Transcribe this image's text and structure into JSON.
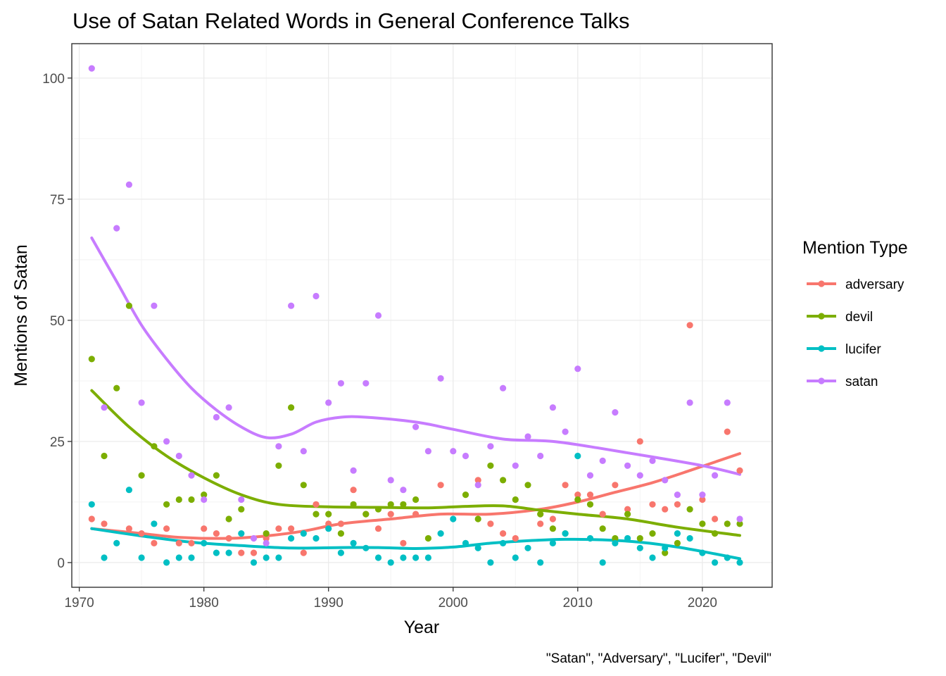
{
  "chart_data": {
    "type": "scatter",
    "title": "Use of Satan Related Words in General Conference Talks",
    "xlabel": "Year",
    "ylabel": "Mentions of Satan",
    "caption": "\"Satan\", \"Adversary\", \"Lucifer\", \"Devil\"",
    "xlim": [
      1969.4,
      1975.5
    ],
    "x_range": [
      1969.4,
      2025.6
    ],
    "ylim": [
      -5.1,
      107.1
    ],
    "x_ticks": [
      1970,
      1980,
      1990,
      2000,
      2010,
      2020
    ],
    "x_tick_labels": [
      "1970",
      "1980",
      "1990",
      "2000",
      "2010",
      "2020"
    ],
    "y_ticks": [
      0,
      25,
      50,
      75,
      100
    ],
    "y_tick_labels": [
      "0",
      "25",
      "50",
      "75",
      "100"
    ],
    "grid": true,
    "theme": "bw",
    "legend": {
      "title": "Mention Type",
      "position": "right"
    },
    "smooth": "loess",
    "series": [
      {
        "name": "adversary",
        "color": "#F8766D",
        "x": [
          1971,
          1972,
          1973,
          1974,
          1975,
          1976,
          1977,
          1978,
          1979,
          1980,
          1981,
          1982,
          1983,
          1984,
          1985,
          1986,
          1987,
          1988,
          1989,
          1990,
          1991,
          1992,
          1993,
          1994,
          1995,
          1996,
          1997,
          1998,
          1999,
          2000,
          2001,
          2002,
          2003,
          2004,
          2005,
          2006,
          2007,
          2008,
          2009,
          2010,
          2011,
          2012,
          2013,
          2014,
          2015,
          2016,
          2017,
          2018,
          2019,
          2020,
          2021,
          2022,
          2023
        ],
        "values": [
          9,
          8,
          null,
          7,
          6,
          4,
          7,
          4,
          4,
          7,
          6,
          5,
          2,
          2,
          5,
          7,
          7,
          2,
          12,
          8,
          8,
          15,
          10,
          7,
          10,
          4,
          10,
          null,
          16,
          null,
          null,
          17,
          8,
          6,
          5,
          null,
          8,
          9,
          16,
          14,
          14,
          10,
          16,
          11,
          25,
          12,
          11,
          12,
          49,
          13,
          9,
          27,
          19
        ],
        "trend": [
          [
            1971,
            7.0
          ],
          [
            1975,
            6.0
          ],
          [
            1978,
            5.2
          ],
          [
            1982,
            5.0
          ],
          [
            1985,
            5.5
          ],
          [
            1988,
            6.5
          ],
          [
            1991,
            8.0
          ],
          [
            1995,
            9.0
          ],
          [
            1999,
            10.0
          ],
          [
            2003,
            10.0
          ],
          [
            2007,
            11.0
          ],
          [
            2010,
            12.5
          ],
          [
            2013,
            14.5
          ],
          [
            2016,
            16.5
          ],
          [
            2019,
            19.0
          ],
          [
            2023,
            22.5
          ]
        ]
      },
      {
        "name": "devil",
        "color": "#7CAE00",
        "x": [
          1971,
          1972,
          1973,
          1974,
          1975,
          1976,
          1977,
          1978,
          1979,
          1980,
          1981,
          1982,
          1983,
          1984,
          1985,
          1986,
          1987,
          1988,
          1989,
          1990,
          1991,
          1992,
          1993,
          1994,
          1995,
          1996,
          1997,
          1998,
          1999,
          2000,
          2001,
          2002,
          2003,
          2004,
          2005,
          2006,
          2007,
          2008,
          2009,
          2010,
          2011,
          2012,
          2013,
          2014,
          2015,
          2016,
          2017,
          2018,
          2019,
          2020,
          2021,
          2022,
          2023
        ],
        "values": [
          42,
          22,
          36,
          53,
          18,
          24,
          12,
          13,
          13,
          14,
          18,
          9,
          11,
          null,
          6,
          20,
          32,
          16,
          10,
          10,
          6,
          12,
          10,
          11,
          12,
          12,
          13,
          5,
          null,
          null,
          14,
          9,
          20,
          17,
          13,
          16,
          10,
          7,
          6,
          13,
          12,
          7,
          5,
          10,
          5,
          6,
          2,
          4,
          11,
          8,
          6,
          8,
          8
        ],
        "trend": [
          [
            1971,
            35.5
          ],
          [
            1974,
            28.0
          ],
          [
            1977,
            22.0
          ],
          [
            1980,
            17.5
          ],
          [
            1983,
            14.0
          ],
          [
            1986,
            12.0
          ],
          [
            1990,
            11.5
          ],
          [
            1994,
            11.4
          ],
          [
            1998,
            11.3
          ],
          [
            2001,
            11.6
          ],
          [
            2004,
            11.7
          ],
          [
            2007,
            10.8
          ],
          [
            2010,
            10.0
          ],
          [
            2014,
            9.0
          ],
          [
            2018,
            7.3
          ],
          [
            2023,
            5.6
          ]
        ]
      },
      {
        "name": "lucifer",
        "color": "#00BFC4",
        "x": [
          1971,
          1972,
          1973,
          1974,
          1975,
          1976,
          1977,
          1978,
          1979,
          1980,
          1981,
          1982,
          1983,
          1984,
          1985,
          1986,
          1987,
          1988,
          1989,
          1990,
          1991,
          1992,
          1993,
          1994,
          1995,
          1996,
          1997,
          1998,
          1999,
          2000,
          2001,
          2002,
          2003,
          2004,
          2005,
          2006,
          2007,
          2008,
          2009,
          2010,
          2011,
          2012,
          2013,
          2014,
          2015,
          2016,
          2017,
          2018,
          2019,
          2020,
          2021,
          2022,
          2023
        ],
        "values": [
          12,
          1,
          4,
          15,
          1,
          8,
          0,
          1,
          1,
          4,
          2,
          2,
          6,
          0,
          1,
          1,
          5,
          6,
          5,
          7,
          2,
          4,
          3,
          1,
          0,
          1,
          1,
          1,
          6,
          9,
          4,
          3,
          0,
          4,
          1,
          3,
          0,
          4,
          6,
          22,
          5,
          0,
          4,
          5,
          3,
          1,
          3,
          6,
          5,
          2,
          0,
          1,
          0
        ],
        "trend": [
          [
            1971,
            7.0
          ],
          [
            1975,
            5.5
          ],
          [
            1979,
            4.2
          ],
          [
            1983,
            3.5
          ],
          [
            1987,
            3.0
          ],
          [
            1991,
            3.1
          ],
          [
            1994,
            3.1
          ],
          [
            1997,
            2.9
          ],
          [
            2000,
            3.2
          ],
          [
            2003,
            4.0
          ],
          [
            2006,
            4.5
          ],
          [
            2009,
            4.8
          ],
          [
            2012,
            4.7
          ],
          [
            2015,
            4.2
          ],
          [
            2018,
            3.2
          ],
          [
            2021,
            1.8
          ],
          [
            2023,
            0.8
          ]
        ]
      },
      {
        "name": "satan",
        "color": "#C77CFF",
        "x": [
          1971,
          1972,
          1973,
          1974,
          1975,
          1976,
          1977,
          1978,
          1979,
          1980,
          1981,
          1982,
          1983,
          1984,
          1985,
          1986,
          1987,
          1988,
          1989,
          1990,
          1991,
          1992,
          1993,
          1994,
          1995,
          1996,
          1997,
          1998,
          1999,
          2000,
          2001,
          2002,
          2003,
          2004,
          2005,
          2006,
          2007,
          2008,
          2009,
          2010,
          2011,
          2012,
          2013,
          2014,
          2015,
          2016,
          2017,
          2018,
          2019,
          2020,
          2021,
          2022,
          2023
        ],
        "values": [
          102,
          32,
          69,
          78,
          33,
          53,
          25,
          22,
          18,
          13,
          30,
          32,
          13,
          5,
          4,
          24,
          53,
          23,
          55,
          33,
          37,
          19,
          37,
          51,
          17,
          15,
          28,
          23,
          38,
          23,
          22,
          16,
          24,
          36,
          20,
          26,
          22,
          32,
          27,
          40,
          18,
          21,
          31,
          20,
          18,
          21,
          17,
          14,
          33,
          14,
          18,
          33,
          9
        ],
        "trend": [
          [
            1971,
            67.0
          ],
          [
            1973,
            58.0
          ],
          [
            1975,
            49.0
          ],
          [
            1977,
            42.0
          ],
          [
            1979,
            36.0
          ],
          [
            1981,
            31.5
          ],
          [
            1983,
            28.0
          ],
          [
            1985,
            25.8
          ],
          [
            1987,
            26.5
          ],
          [
            1989,
            29.0
          ],
          [
            1991,
            30.0
          ],
          [
            1993,
            30.0
          ],
          [
            1997,
            29.0
          ],
          [
            2000,
            27.5
          ],
          [
            2004,
            25.5
          ],
          [
            2008,
            25.0
          ],
          [
            2012,
            23.5
          ],
          [
            2016,
            21.8
          ],
          [
            2020,
            20.0
          ],
          [
            2023,
            18.2
          ]
        ]
      }
    ]
  }
}
